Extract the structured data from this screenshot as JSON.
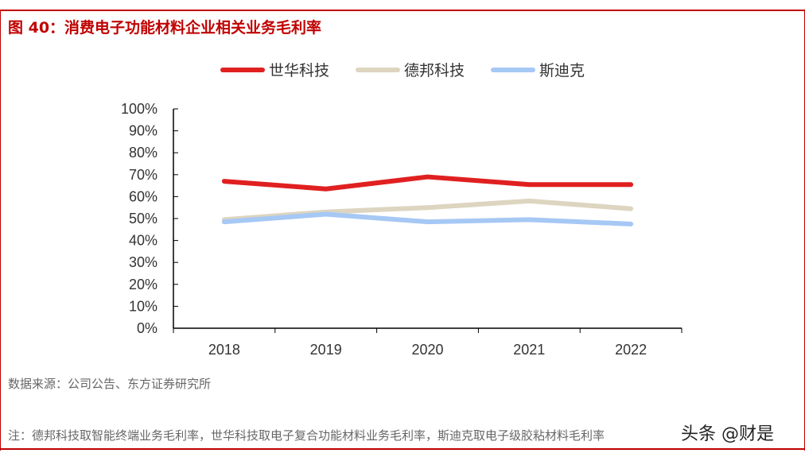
{
  "title": "图 40：消费电子功能材料企业相关业务毛利率",
  "source": "数据来源：公司公告、东方证券研究所",
  "note": "注：德邦科技取智能终端业务毛利率，世华科技取电子复合功能材料业务毛利率，斯迪克取电子级胶粘材料毛利率",
  "watermark": "头条 @财是",
  "chart_data": {
    "type": "line",
    "categories": [
      "2018",
      "2019",
      "2020",
      "2021",
      "2022"
    ],
    "ylim": [
      0,
      100
    ],
    "yticks": [
      "0%",
      "10%",
      "20%",
      "30%",
      "40%",
      "50%",
      "60%",
      "70%",
      "80%",
      "90%",
      "100%"
    ],
    "legend_position": "top",
    "grid": false,
    "series": [
      {
        "name": "世华科技",
        "color": "#e02020",
        "values": [
          67,
          63.5,
          69,
          65.5,
          65.5
        ]
      },
      {
        "name": "德邦科技",
        "color": "#ddd5c0",
        "values": [
          49.5,
          53,
          55,
          58,
          54.5
        ]
      },
      {
        "name": "斯迪克",
        "color": "#a6c8f5",
        "values": [
          48.5,
          52,
          48.5,
          49.5,
          47.5
        ]
      }
    ]
  }
}
